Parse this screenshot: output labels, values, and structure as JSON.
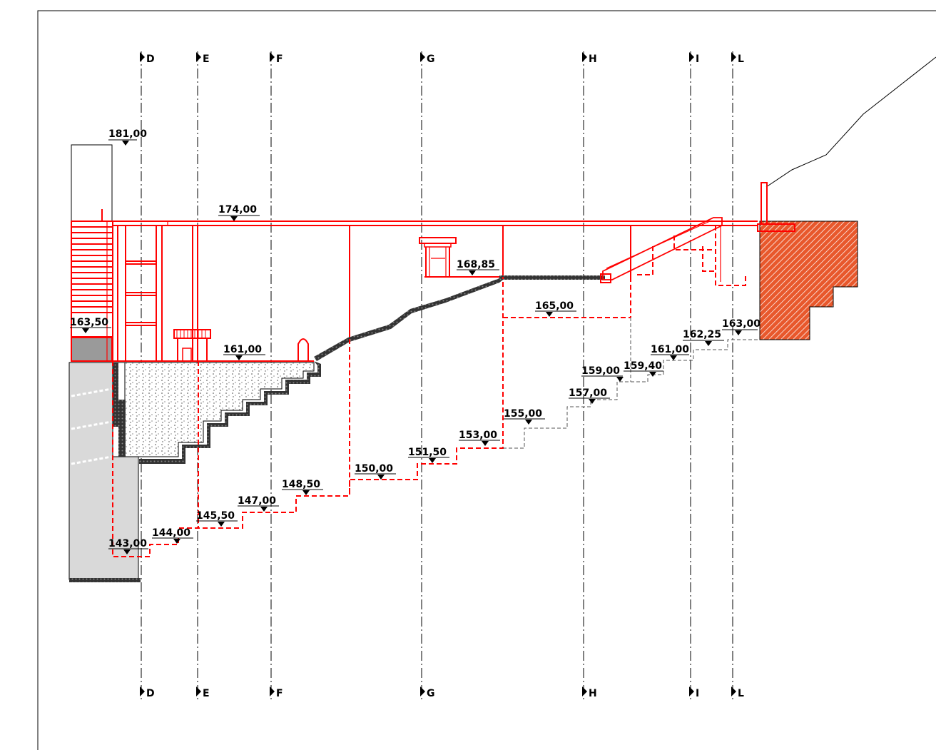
{
  "axes": [
    "D",
    "E",
    "F",
    "G",
    "H",
    "I",
    "L"
  ],
  "elevations": {
    "e181": "181,00",
    "e174": "174,00",
    "e168_85": "168,85",
    "e165": "165,00",
    "e163_50": "163,50",
    "e163": "163,00",
    "e162_25": "162,25",
    "e161_right": "161,00",
    "e161_left": "161,00",
    "e159_40": "159,40",
    "e159": "159,00",
    "e157": "157,00",
    "e155": "155,00",
    "e153": "153,00",
    "e151_50": "151,50",
    "e150": "150,00",
    "e148_50": "148,50",
    "e147": "147,00",
    "e145_50": "145,50",
    "e144": "144,00",
    "e143": "143,00"
  },
  "colors": {
    "structure": "#ff0000",
    "hatch": "#e8582c",
    "concrete": "#d9d9d9",
    "dark": "#3a3a3a"
  }
}
